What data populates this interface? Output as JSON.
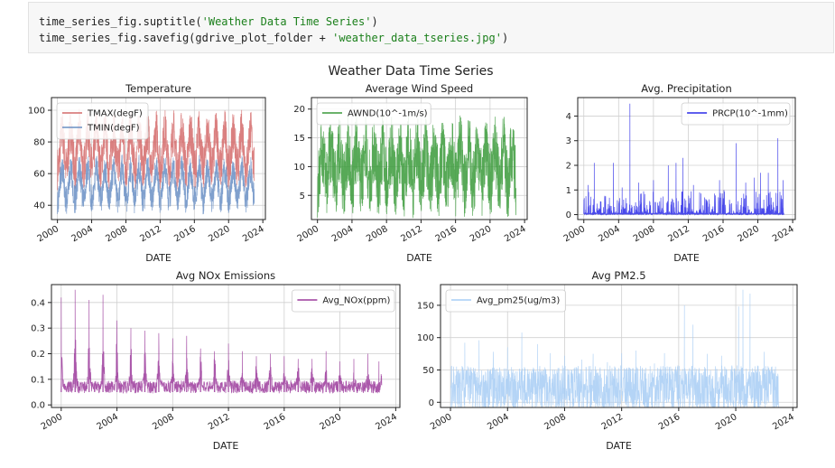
{
  "code": {
    "line1": {
      "pre": "time_series_fig.suptitle(",
      "str": "'Weather Data Time Series'",
      "post": ")"
    },
    "line2": {
      "pre": "time_series_fig.savefig(gdrive_plot_folder + ",
      "str": "'weather_data_tseries.jpg'",
      "post": ")"
    }
  },
  "figure": {
    "suptitle": "Weather Data Time Series"
  },
  "chart_data": [
    {
      "type": "line",
      "title": "Temperature",
      "xlabel": "DATE",
      "ylabel": "",
      "xlim": [
        1999.3,
        2024.3
      ],
      "ylim": [
        31,
        108
      ],
      "xticks": [
        2000,
        2004,
        2008,
        2012,
        2016,
        2020,
        2024
      ],
      "yticks": [
        40,
        60,
        80,
        100
      ],
      "legend": "upper-left",
      "grid": true,
      "series": [
        {
          "name": "TMAX(degF)",
          "color": "#d46a6a",
          "base": 75,
          "amp": 12,
          "noise": 14,
          "start": 2000.0,
          "end": 2023.0,
          "spike": 0,
          "decay": 0
        },
        {
          "name": "TMIN(degF)",
          "color": "#6a8fc4",
          "base": 53,
          "amp": 10,
          "noise": 9,
          "start": 2000.0,
          "end": 2023.0,
          "spike": 0,
          "decay": 0
        }
      ]
    },
    {
      "type": "line",
      "title": "Average Wind Speed",
      "xlabel": "DATE",
      "ylabel": "",
      "xlim": [
        1999.3,
        2024.3
      ],
      "ylim": [
        0.8,
        22
      ],
      "xticks": [
        2000,
        2004,
        2008,
        2012,
        2016,
        2020,
        2024
      ],
      "yticks": [
        5,
        10,
        15,
        20
      ],
      "legend": "upper-left",
      "grid": true,
      "series": [
        {
          "name": "AWND(10^-1m/s)",
          "color": "#3a9a3a",
          "base": 10,
          "amp": 3,
          "noise": 6,
          "start": 2000.0,
          "end": 2023.0,
          "spike": 0,
          "decay": 0
        }
      ]
    },
    {
      "type": "line",
      "title": "Avg. Precipitation",
      "xlabel": "DATE",
      "ylabel": "",
      "xlim": [
        1999.3,
        2024.3
      ],
      "ylim": [
        -0.2,
        4.75
      ],
      "xticks": [
        2000,
        2004,
        2008,
        2012,
        2016,
        2020,
        2024
      ],
      "yticks": [
        0,
        1,
        2,
        3,
        4
      ],
      "legend": "upper-right",
      "grid": true,
      "series": [
        {
          "name": "PRCP(10^-1mm)",
          "color": "#2a2ae8",
          "base": 0.05,
          "amp": 0,
          "noise": 0.3,
          "start": 2000.0,
          "end": 2023.0,
          "spike": 1,
          "decay": 0
        }
      ],
      "peaks": [
        [
          2000.5,
          1.2
        ],
        [
          2001.2,
          2.1
        ],
        [
          2003.4,
          2.1
        ],
        [
          2004.4,
          1.1
        ],
        [
          2005.3,
          4.5
        ],
        [
          2006.3,
          1.3
        ],
        [
          2008.0,
          1.4
        ],
        [
          2009.7,
          2.0
        ],
        [
          2010.6,
          2.1
        ],
        [
          2011.4,
          2.3
        ],
        [
          2012.6,
          1.2
        ],
        [
          2013.3,
          0.9
        ],
        [
          2014.1,
          0.6
        ],
        [
          2015.6,
          1.4
        ],
        [
          2016.1,
          1.0
        ],
        [
          2017.5,
          2.9
        ],
        [
          2018.6,
          1.3
        ],
        [
          2019.6,
          1.5
        ],
        [
          2020.3,
          1.7
        ],
        [
          2021.2,
          1.7
        ],
        [
          2022.3,
          3.1
        ],
        [
          2022.9,
          1.4
        ]
      ]
    },
    {
      "type": "line",
      "title": "Avg NOx Emissions",
      "xlabel": "DATE",
      "ylabel": "",
      "xlim": [
        1999.3,
        2024.3
      ],
      "ylim": [
        -0.01,
        0.47
      ],
      "xticks": [
        2000,
        2004,
        2008,
        2012,
        2016,
        2020,
        2024
      ],
      "yticks": [
        0.0,
        0.1,
        0.2,
        0.3,
        0.4
      ],
      "legend": "upper-right",
      "grid": true,
      "series": [
        {
          "name": "Avg_NOx(ppm)",
          "color": "#9b3a9b",
          "base": 0.05,
          "amp": 0,
          "noise": 0.05,
          "start": 2000.0,
          "end": 2023.0,
          "spike": 0,
          "decay": 1
        }
      ],
      "peaks": [
        [
          2000.0,
          0.42
        ],
        [
          2001.0,
          0.45
        ],
        [
          2002.0,
          0.41
        ],
        [
          2003.0,
          0.43
        ],
        [
          2004.0,
          0.33
        ],
        [
          2005.0,
          0.3
        ],
        [
          2006.0,
          0.29
        ],
        [
          2007.0,
          0.28
        ],
        [
          2008.0,
          0.26
        ],
        [
          2009.0,
          0.27
        ],
        [
          2010.0,
          0.22
        ],
        [
          2011.0,
          0.21
        ],
        [
          2012.0,
          0.24
        ],
        [
          2013.0,
          0.21
        ],
        [
          2014.0,
          0.19
        ],
        [
          2015.0,
          0.2
        ],
        [
          2016.0,
          0.19
        ],
        [
          2017.0,
          0.18
        ],
        [
          2018.0,
          0.18
        ],
        [
          2019.0,
          0.21
        ],
        [
          2020.0,
          0.17
        ],
        [
          2021.0,
          0.18
        ],
        [
          2022.0,
          0.2
        ],
        [
          2022.8,
          0.17
        ]
      ]
    },
    {
      "type": "line",
      "title": "Avg PM2.5",
      "xlabel": "DATE",
      "ylabel": "",
      "xlim": [
        1999.3,
        2024.3
      ],
      "ylim": [
        -8,
        182
      ],
      "xticks": [
        2000,
        2004,
        2008,
        2012,
        2016,
        2020,
        2024
      ],
      "yticks": [
        0,
        50,
        100,
        150
      ],
      "legend": "upper-left",
      "grid": true,
      "series": [
        {
          "name": "Avg_pm25(ug/m3)",
          "color": "#a7cdf5",
          "base": 22,
          "amp": 0,
          "noise": 35,
          "start": 2000.0,
          "end": 2023.0,
          "spike": 0,
          "decay": 0
        }
      ],
      "peaks": [
        [
          2001.0,
          92
        ],
        [
          2002.0,
          96
        ],
        [
          2003.0,
          78
        ],
        [
          2004.0,
          85
        ],
        [
          2005.0,
          108
        ],
        [
          2006.1,
          90
        ],
        [
          2007.0,
          76
        ],
        [
          2008.0,
          72
        ],
        [
          2009.2,
          66
        ],
        [
          2010.0,
          75
        ],
        [
          2011.0,
          62
        ],
        [
          2012.0,
          76
        ],
        [
          2013.0,
          80
        ],
        [
          2014.3,
          60
        ],
        [
          2015.0,
          76
        ],
        [
          2016.4,
          150
        ],
        [
          2017.0,
          120
        ],
        [
          2018.0,
          75
        ],
        [
          2019.0,
          72
        ],
        [
          2020.2,
          148
        ],
        [
          2020.5,
          174
        ],
        [
          2021.0,
          168
        ],
        [
          2022.0,
          78
        ]
      ]
    }
  ]
}
